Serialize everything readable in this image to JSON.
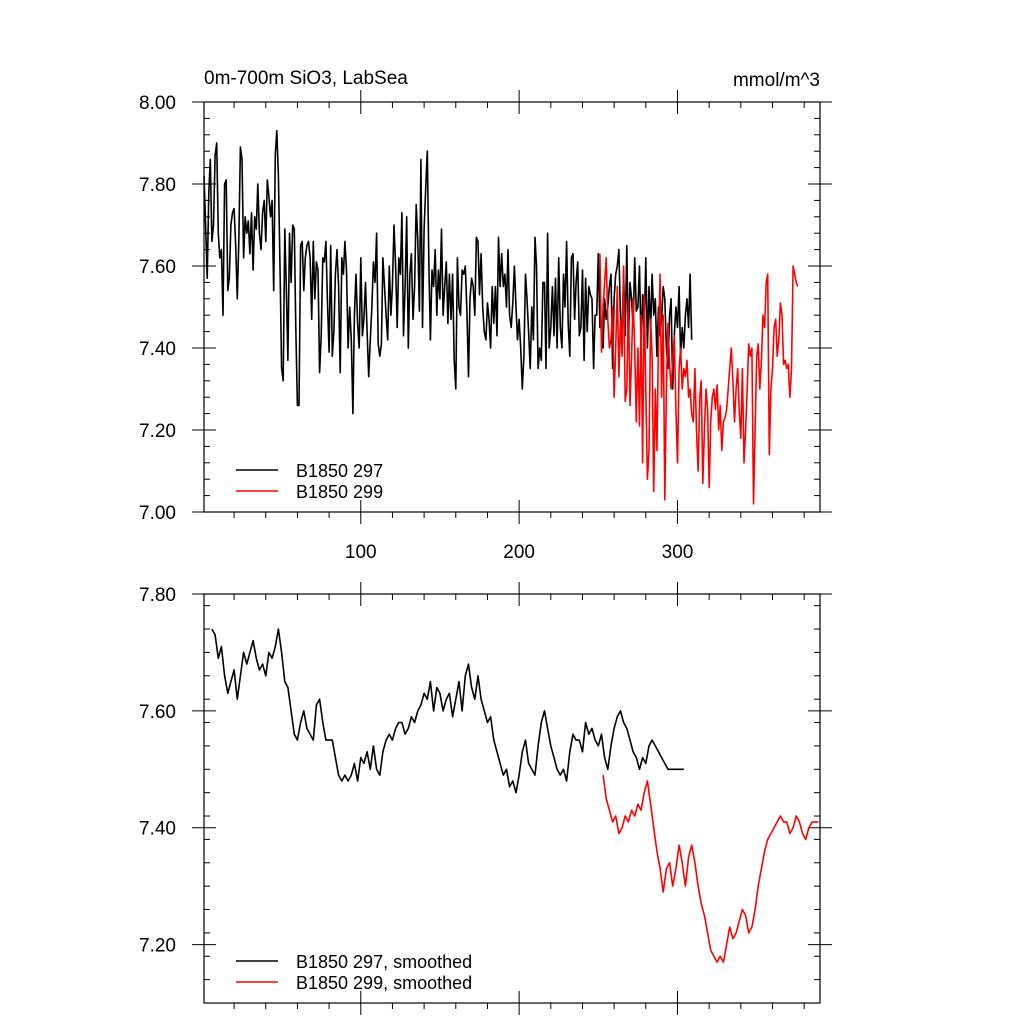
{
  "chart_data": [
    {
      "type": "line",
      "title": "0m-700m SiO3, LabSea",
      "units_label": "mmol/m^3",
      "xlim": [
        1,
        390
      ],
      "ylim": [
        7.0,
        8.0
      ],
      "x_ticks": [
        100,
        200,
        300
      ],
      "x_tick_labels": [
        "100",
        "200",
        "300"
      ],
      "y_ticks": [
        7.0,
        7.2,
        7.4,
        7.6,
        7.8,
        8.0
      ],
      "y_tick_labels": [
        "7.00",
        "7.20",
        "7.40",
        "7.60",
        "7.80",
        "8.00"
      ],
      "legend_position": "bottom-left",
      "series": [
        {
          "name": "B1850 297",
          "color": "#000000",
          "x_start": 1,
          "values": [
            7.82,
            7.7,
            7.57,
            7.78,
            7.86,
            7.66,
            7.7,
            7.87,
            7.9,
            7.68,
            7.62,
            7.64,
            7.48,
            7.8,
            7.81,
            7.54,
            7.57,
            7.7,
            7.73,
            7.74,
            7.65,
            7.52,
            7.66,
            7.89,
            7.86,
            7.62,
            7.72,
            7.68,
            7.71,
            7.63,
            7.73,
            7.59,
            7.72,
            7.69,
            7.8,
            7.68,
            7.64,
            7.73,
            7.76,
            7.66,
            7.81,
            7.77,
            7.72,
            7.76,
            7.54,
            7.87,
            7.93,
            7.82,
            7.6,
            7.35,
            7.32,
            7.69,
            7.55,
            7.37,
            7.68,
            7.56,
            7.7,
            7.69,
            7.45,
            7.26,
            7.26,
            7.65,
            7.66,
            7.54,
            7.62,
            7.65,
            7.66,
            7.62,
            7.47,
            7.66,
            7.52,
            7.61,
            7.59,
            7.34,
            7.43,
            7.62,
            7.61,
            7.66,
            7.51,
            7.39,
            7.65,
            7.38,
            7.44,
            7.58,
            7.64,
            7.55,
            7.34,
            7.62,
            7.58,
            7.66,
            7.59,
            7.4,
            7.5,
            7.42,
            7.24,
            7.48,
            7.58,
            7.46,
            7.4,
            7.62,
            7.43,
            7.47,
            7.56,
            7.44,
            7.33,
            7.42,
            7.5,
            7.61,
            7.56,
            7.68,
            7.41,
            7.38,
            7.41,
            7.62,
            7.55,
            7.48,
            7.42,
            7.6,
            7.48,
            7.55,
            7.7,
            7.6,
            7.45,
            7.62,
            7.58,
            7.73,
            7.43,
            7.55,
            7.72,
            7.4,
            7.58,
            7.63,
            7.47,
            7.55,
            7.75,
            7.66,
            7.49,
            7.86,
            7.45,
            7.69,
            7.79,
            7.88,
            7.6,
            7.42,
            7.59,
            7.55,
            7.64,
            7.48,
            7.59,
            7.52,
            7.69,
            7.48,
            7.55,
            7.61,
            7.46,
            7.58,
            7.47,
            7.58,
            7.37,
            7.3,
            7.62,
            7.5,
            7.48,
            7.59,
            7.58,
            7.6,
            7.49,
            7.33,
            7.52,
            7.57,
            7.55,
            7.48,
            7.67,
            7.66,
            7.53,
            7.63,
            7.5,
            7.44,
            7.42,
            7.51,
            7.47,
            7.4,
            7.55,
            7.46,
            7.55,
            7.43,
            7.67,
            7.55,
            7.63,
            7.55,
            7.58,
            7.5,
            7.64,
            7.48,
            7.45,
            7.51,
            7.6,
            7.5,
            7.42,
            7.47,
            7.4,
            7.3,
            7.38,
            7.58,
            7.52,
            7.44,
            7.35,
            7.5,
            7.42,
            7.67,
            7.6,
            7.35,
            7.4,
            7.37,
            7.56,
            7.56,
            7.35,
            7.68,
            7.4,
            7.45,
            7.55,
            7.43,
            7.57,
            7.4,
            7.62,
            7.45,
            7.4,
            7.58,
            7.5,
            7.66,
            7.46,
            7.38,
            7.62,
            7.63,
            7.47,
            7.56,
            7.61,
            7.43,
            7.45,
            7.59,
            7.37,
            7.57,
            7.44,
            7.55,
            7.53,
            7.52,
            7.35,
            7.48,
            7.48,
            7.63,
            7.45,
            7.45,
            7.4,
            7.52,
            7.47,
            7.5,
            7.55,
            7.58,
            7.35,
            7.52,
            7.58,
            7.6,
            7.64,
            7.47,
            7.45,
            7.58,
            7.43,
            7.65,
            7.4,
            7.56,
            7.52,
            7.45,
            7.62,
            7.49,
            7.5,
            7.6,
            7.4,
            7.53,
            7.44,
            7.62,
            7.4,
            7.55,
            7.44,
            7.58,
            7.48,
            7.52,
            7.38,
            7.5,
            7.43,
            7.47,
            7.55,
            7.52,
            7.4,
            7.35,
            7.48,
            7.52,
            7.3,
            7.43,
            7.5,
            7.45,
            7.55,
            7.38,
            7.45,
            7.4,
            7.48,
            7.52,
            7.45,
            7.58,
            7.42
          ]
        },
        {
          "name": "B1850 299",
          "color": "#ff0000",
          "x_start": 251,
          "values": [
            7.63,
            7.39,
            7.5,
            7.56,
            7.62,
            7.47,
            7.4,
            7.42,
            7.5,
            7.28,
            7.4,
            7.55,
            7.33,
            7.47,
            7.38,
            7.6,
            7.27,
            7.3,
            7.52,
            7.26,
            7.38,
            7.52,
            7.4,
            7.22,
            7.4,
            7.21,
            7.48,
            7.12,
            7.53,
            7.3,
            7.08,
            7.15,
            7.47,
            7.38,
            7.05,
            7.3,
            7.15,
            7.42,
            7.58,
            7.28,
            7.48,
            7.03,
            7.3,
            7.46,
            7.36,
            7.3,
            7.37,
            7.43,
            7.25,
            7.12,
            7.35,
            7.4,
            7.3,
            7.35,
            7.33,
            7.37,
            7.28,
            7.3,
            7.24,
            7.22,
            7.35,
            7.2,
            7.1,
            7.28,
            7.32,
            7.07,
            7.2,
            7.3,
            7.25,
            7.06,
            7.22,
            7.28,
            7.3,
            7.25,
            7.31,
            7.2,
            7.26,
            7.15,
            7.22,
            7.23,
            7.25,
            7.3,
            7.35,
            7.4,
            7.32,
            7.22,
            7.3,
            7.35,
            7.25,
            7.18,
            7.35,
            7.12,
            7.2,
            7.3,
            7.41,
            7.38,
            7.4,
            7.02,
            7.2,
            7.38,
            7.41,
            7.3,
            7.37,
            7.48,
            7.45,
            7.56,
            7.58,
            7.14,
            7.3,
            7.35,
            7.45,
            7.47,
            7.38,
            7.42,
            7.51,
            7.48,
            7.36,
            7.37,
            7.35,
            7.36,
            7.28,
            7.35,
            7.6,
            7.58,
            7.56,
            7.55
          ]
        }
      ],
      "legend": [
        "B1850 297",
        "B1850 299"
      ]
    },
    {
      "type": "line",
      "title": "",
      "xlim": [
        1,
        390
      ],
      "ylim": [
        7.1,
        7.8
      ],
      "x_ticks": [
        100,
        200,
        300
      ],
      "x_tick_labels": [],
      "y_ticks": [
        7.2,
        7.4,
        7.6,
        7.8
      ],
      "y_tick_labels": [
        "7.20",
        "7.40",
        "7.60",
        "7.80"
      ],
      "legend_position": "bottom-left",
      "series": [
        {
          "name": "B1850 297, smoothed",
          "color": "#000000",
          "x": [
            6,
            8,
            10,
            12,
            14,
            16,
            18,
            20,
            22,
            24,
            26,
            28,
            30,
            32,
            34,
            36,
            38,
            40,
            42,
            44,
            46,
            48,
            50,
            52,
            54,
            56,
            58,
            60,
            62,
            64,
            66,
            68,
            70,
            72,
            74,
            76,
            78,
            80,
            82,
            84,
            86,
            88,
            90,
            92,
            94,
            96,
            98,
            100,
            102,
            104,
            106,
            108,
            110,
            112,
            114,
            116,
            118,
            120,
            122,
            124,
            126,
            128,
            130,
            132,
            134,
            136,
            138,
            140,
            142,
            144,
            146,
            148,
            150,
            152,
            154,
            156,
            158,
            160,
            162,
            164,
            166,
            168,
            170,
            172,
            174,
            176,
            178,
            180,
            182,
            184,
            186,
            188,
            190,
            192,
            194,
            196,
            198,
            200,
            202,
            204,
            206,
            208,
            210,
            212,
            214,
            216,
            218,
            220,
            222,
            224,
            226,
            228,
            230,
            232,
            234,
            236,
            238,
            240,
            242,
            244,
            246,
            248,
            250,
            252,
            254,
            256,
            258,
            260,
            262,
            264,
            266,
            268,
            270,
            272,
            274,
            276,
            278,
            280,
            282,
            284,
            286,
            288,
            290,
            292,
            294,
            296,
            298,
            300,
            302,
            304
          ],
          "values": [
            7.74,
            7.73,
            7.69,
            7.71,
            7.66,
            7.63,
            7.65,
            7.67,
            7.62,
            7.66,
            7.7,
            7.68,
            7.7,
            7.72,
            7.69,
            7.67,
            7.68,
            7.66,
            7.7,
            7.69,
            7.71,
            7.74,
            7.7,
            7.65,
            7.64,
            7.6,
            7.56,
            7.55,
            7.58,
            7.6,
            7.57,
            7.56,
            7.55,
            7.61,
            7.62,
            7.58,
            7.55,
            7.55,
            7.55,
            7.52,
            7.49,
            7.48,
            7.49,
            7.48,
            7.49,
            7.51,
            7.48,
            7.52,
            7.51,
            7.53,
            7.5,
            7.54,
            7.5,
            7.49,
            7.53,
            7.55,
            7.56,
            7.55,
            7.57,
            7.58,
            7.58,
            7.56,
            7.57,
            7.59,
            7.58,
            7.6,
            7.61,
            7.63,
            7.62,
            7.65,
            7.6,
            7.64,
            7.63,
            7.6,
            7.62,
            7.63,
            7.59,
            7.62,
            7.65,
            7.6,
            7.66,
            7.68,
            7.64,
            7.62,
            7.66,
            7.62,
            7.6,
            7.58,
            7.59,
            7.55,
            7.53,
            7.51,
            7.49,
            7.5,
            7.47,
            7.48,
            7.46,
            7.49,
            7.53,
            7.55,
            7.51,
            7.5,
            7.49,
            7.54,
            7.58,
            7.6,
            7.57,
            7.54,
            7.52,
            7.5,
            7.49,
            7.5,
            7.48,
            7.53,
            7.56,
            7.55,
            7.55,
            7.53,
            7.58,
            7.56,
            7.57,
            7.55,
            7.54,
            7.56,
            7.52,
            7.5,
            7.54,
            7.57,
            7.59,
            7.6,
            7.58,
            7.57,
            7.55,
            7.53,
            7.52,
            7.5,
            7.52,
            7.51,
            7.54,
            7.55,
            7.54,
            7.53,
            7.52,
            7.51,
            7.5,
            7.5,
            7.5,
            7.5,
            7.5,
            7.5
          ]
        },
        {
          "name": "B1850 299, smoothed",
          "color": "#ff0000",
          "x": [
            253,
            255,
            257,
            259,
            261,
            263,
            265,
            267,
            269,
            271,
            273,
            275,
            277,
            279,
            281,
            283,
            285,
            287,
            289,
            291,
            293,
            295,
            297,
            299,
            301,
            303,
            305,
            307,
            309,
            311,
            313,
            315,
            317,
            319,
            321,
            323,
            325,
            327,
            329,
            331,
            333,
            335,
            337,
            339,
            341,
            343,
            345,
            347,
            349,
            351,
            353,
            355,
            357,
            359,
            361,
            363,
            365,
            367,
            369,
            371,
            373,
            375,
            377,
            379,
            381,
            383,
            385,
            387,
            389
          ],
          "values": [
            7.49,
            7.45,
            7.43,
            7.41,
            7.42,
            7.39,
            7.4,
            7.42,
            7.41,
            7.43,
            7.42,
            7.44,
            7.43,
            7.46,
            7.48,
            7.44,
            7.4,
            7.36,
            7.33,
            7.29,
            7.33,
            7.34,
            7.3,
            7.33,
            7.37,
            7.34,
            7.3,
            7.35,
            7.37,
            7.34,
            7.3,
            7.27,
            7.25,
            7.22,
            7.19,
            7.18,
            7.17,
            7.18,
            7.17,
            7.2,
            7.23,
            7.21,
            7.22,
            7.24,
            7.26,
            7.25,
            7.22,
            7.23,
            7.26,
            7.3,
            7.33,
            7.36,
            7.38,
            7.39,
            7.4,
            7.41,
            7.42,
            7.41,
            7.41,
            7.39,
            7.4,
            7.42,
            7.41,
            7.39,
            7.38,
            7.4,
            7.41,
            7.41,
            7.41
          ]
        }
      ],
      "legend": [
        "B1850 297, smoothed",
        "B1850 299, smoothed"
      ]
    }
  ]
}
